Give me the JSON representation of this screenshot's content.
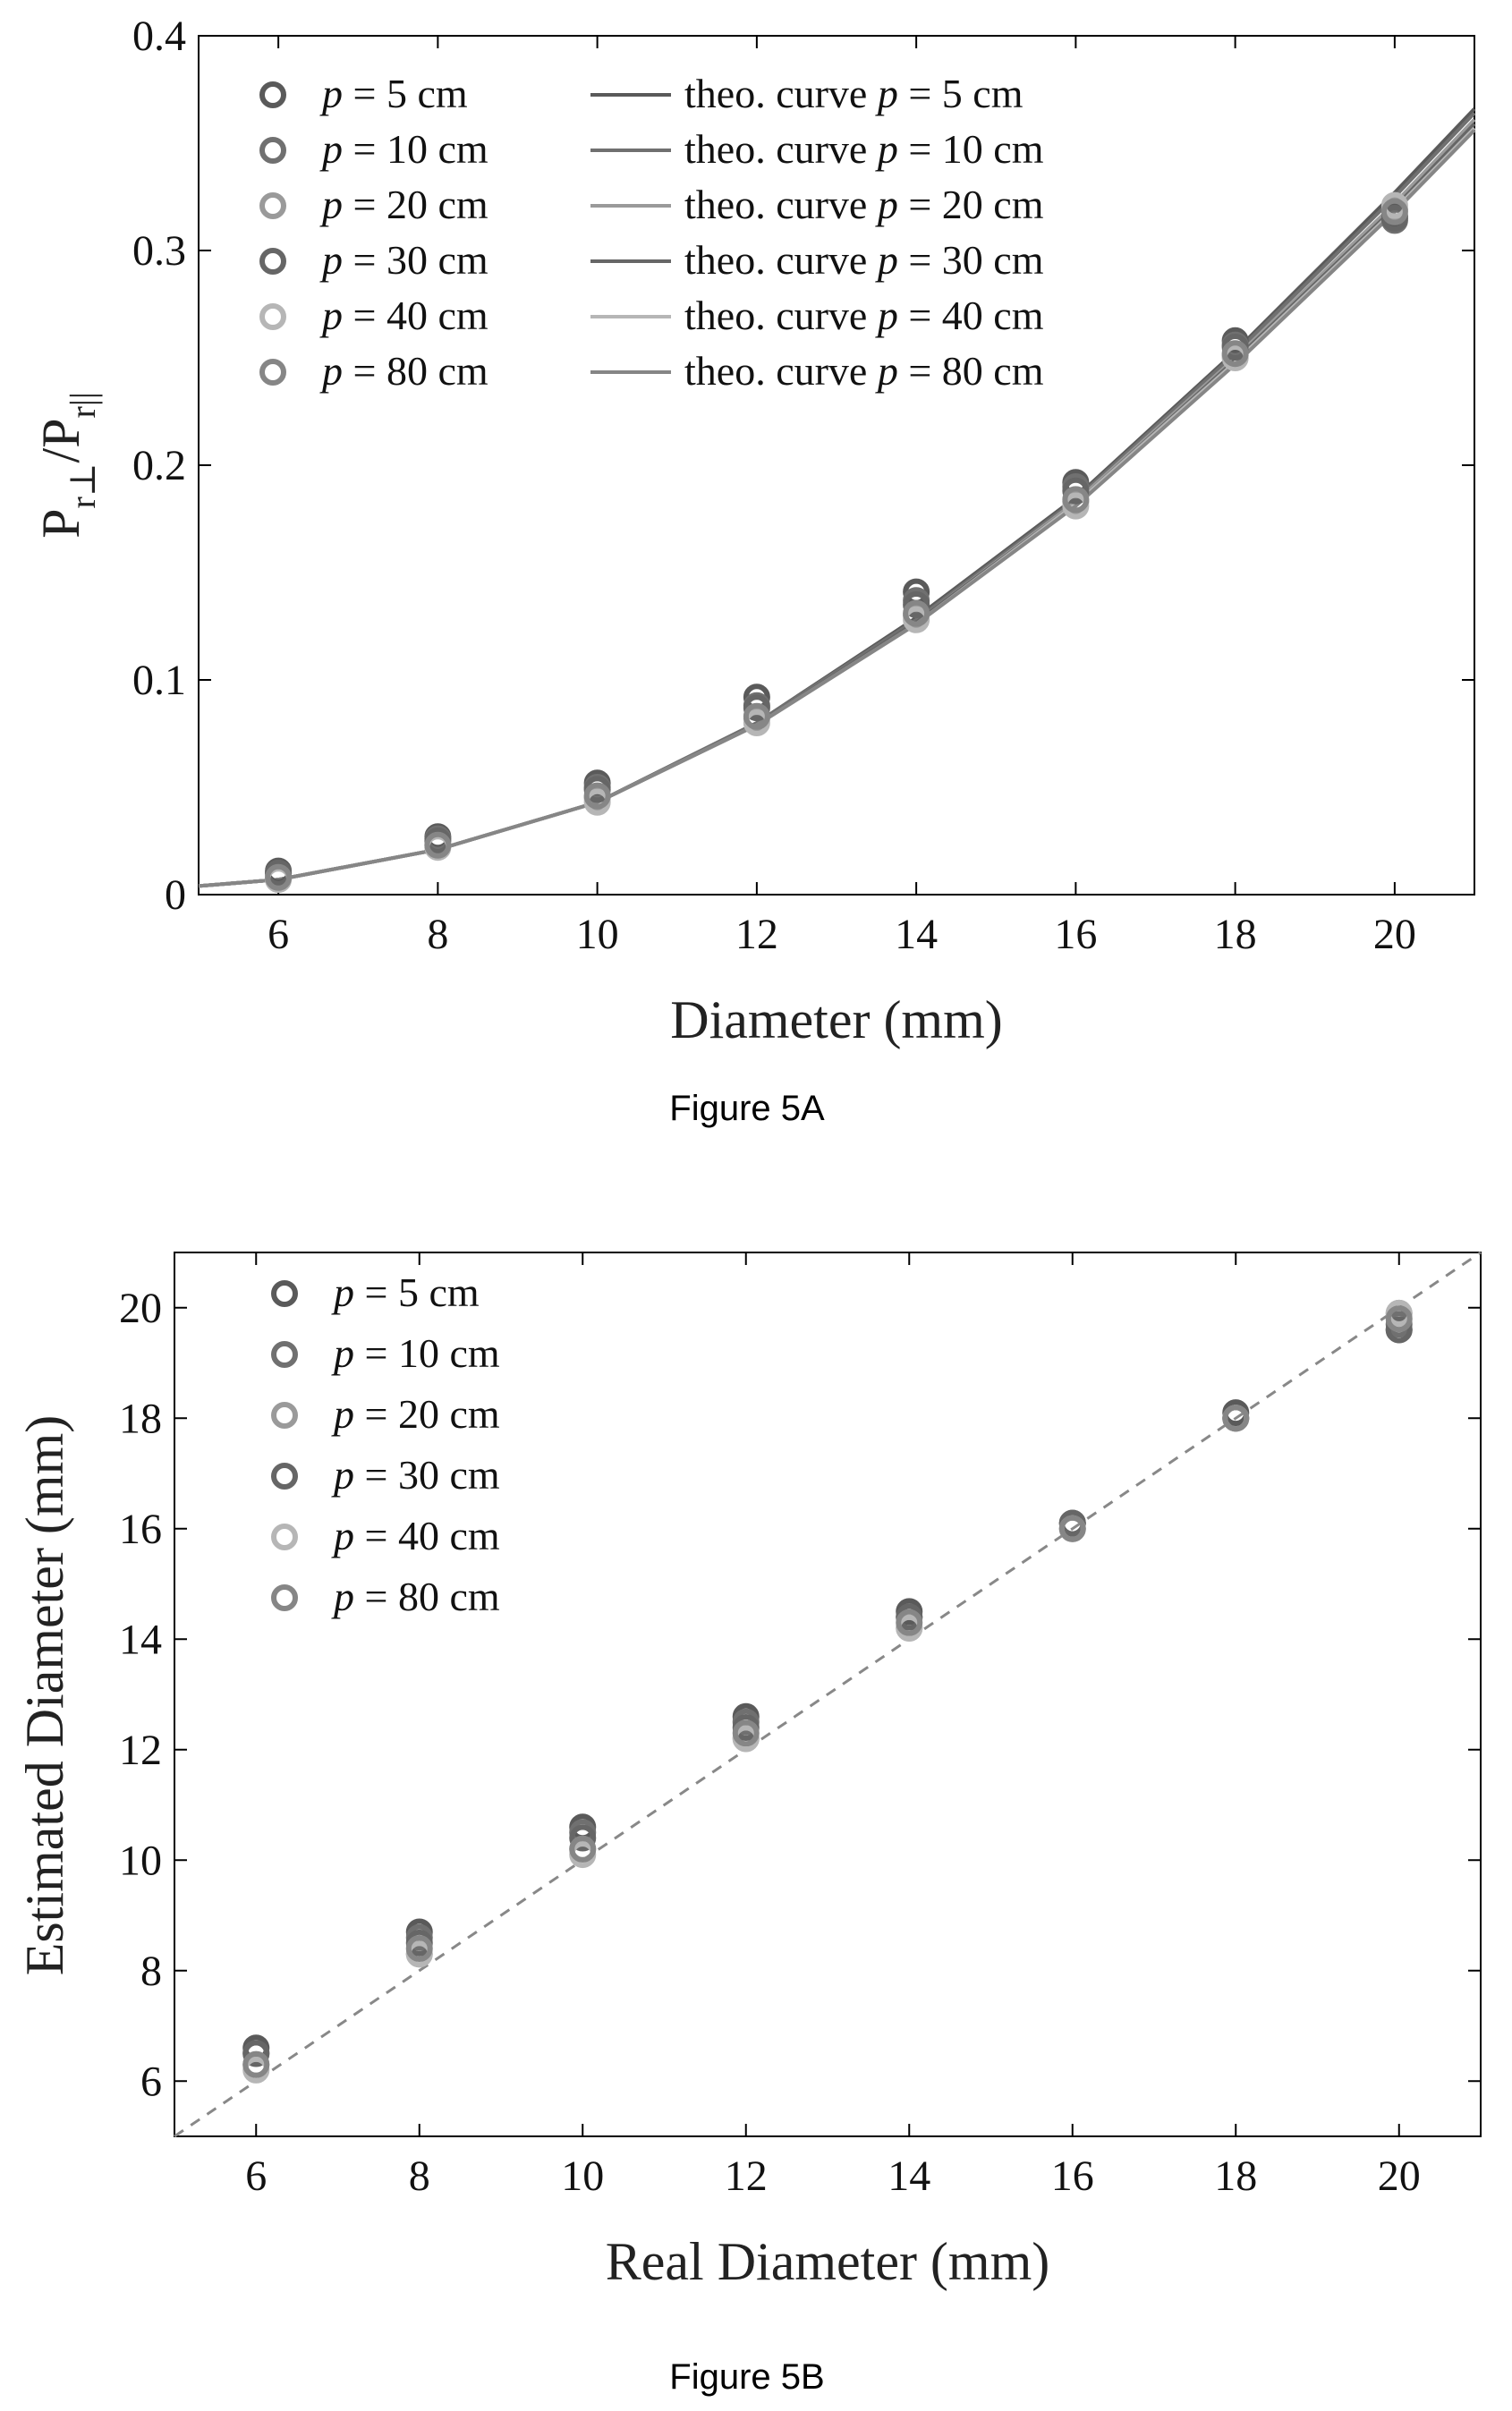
{
  "figures": {
    "a_caption": "Figure 5A",
    "b_caption": "Figure 5B"
  },
  "colors": {
    "series": [
      "#5a5a5a",
      "#707070",
      "#9a9a9a",
      "#666666",
      "#b6b6b6",
      "#868686"
    ],
    "axis": "#000000",
    "reference_line": "#888888"
  },
  "chart_data": [
    {
      "id": "fig5a",
      "type": "scatter",
      "title": "",
      "xlabel": "Diameter (mm)",
      "ylabel": "P_r⊥/P_r||",
      "xlim": [
        5,
        21
      ],
      "ylim": [
        0,
        0.4
      ],
      "xticks": [
        6,
        8,
        10,
        12,
        14,
        16,
        18,
        20
      ],
      "yticks": [
        0,
        0.1,
        0.2,
        0.3,
        0.4
      ],
      "ytick_labels": [
        "0",
        "0.1",
        "0.2",
        "0.3",
        "0.4"
      ],
      "grid": false,
      "legend": "top-left",
      "x": [
        6,
        8,
        10,
        12,
        14,
        16,
        18,
        20
      ],
      "series": [
        {
          "name_prefix": "p",
          "name_suffix": " = 5 cm",
          "values": [
            0.011,
            0.027,
            0.052,
            0.092,
            0.141,
            0.192,
            0.258,
            0.316
          ]
        },
        {
          "name_prefix": "p",
          "name_suffix": " = 10 cm",
          "values": [
            0.01,
            0.026,
            0.05,
            0.088,
            0.137,
            0.19,
            0.256,
            0.314
          ]
        },
        {
          "name_prefix": "p",
          "name_suffix": " = 20 cm",
          "values": [
            0.008,
            0.023,
            0.045,
            0.082,
            0.13,
            0.183,
            0.251,
            0.319
          ]
        },
        {
          "name_prefix": "p",
          "name_suffix": " = 30 cm",
          "values": [
            0.01,
            0.025,
            0.049,
            0.087,
            0.135,
            0.188,
            0.255,
            0.315
          ]
        },
        {
          "name_prefix": "p",
          "name_suffix": " = 40 cm",
          "values": [
            0.007,
            0.022,
            0.043,
            0.08,
            0.128,
            0.181,
            0.25,
            0.321
          ]
        },
        {
          "name_prefix": "p",
          "name_suffix": " = 80 cm",
          "values": [
            0.008,
            0.023,
            0.046,
            0.083,
            0.131,
            0.184,
            0.252,
            0.318
          ]
        }
      ],
      "curves": [
        {
          "name_prefix": "theo. curve  ",
          "name_var": "p",
          "name_suffix": " = 5 cm",
          "x": [
            5,
            6,
            8,
            10,
            12,
            14,
            16,
            18,
            20,
            21
          ],
          "values": [
            0.004,
            0.007,
            0.021,
            0.043,
            0.08,
            0.129,
            0.185,
            0.253,
            0.327,
            0.366
          ]
        },
        {
          "name_prefix": "theo. curve  ",
          "name_var": "p",
          "name_suffix": " = 10 cm",
          "x": [
            5,
            6,
            8,
            10,
            12,
            14,
            16,
            18,
            20,
            21
          ],
          "values": [
            0.004,
            0.007,
            0.021,
            0.043,
            0.08,
            0.128,
            0.184,
            0.252,
            0.325,
            0.364
          ]
        },
        {
          "name_prefix": "theo. curve  ",
          "name_var": "p",
          "name_suffix": " = 20 cm",
          "x": [
            5,
            6,
            8,
            10,
            12,
            14,
            16,
            18,
            20,
            21
          ],
          "values": [
            0.004,
            0.007,
            0.021,
            0.043,
            0.079,
            0.127,
            0.183,
            0.25,
            0.322,
            0.361
          ]
        },
        {
          "name_prefix": "theo. curve  ",
          "name_var": "p",
          "name_suffix": " = 30 cm",
          "x": [
            5,
            6,
            8,
            10,
            12,
            14,
            16,
            18,
            20,
            21
          ],
          "values": [
            0.004,
            0.007,
            0.021,
            0.043,
            0.079,
            0.127,
            0.182,
            0.249,
            0.32,
            0.359
          ]
        },
        {
          "name_prefix": "theo. curve  ",
          "name_var": "p",
          "name_suffix": " = 40 cm",
          "x": [
            5,
            6,
            8,
            10,
            12,
            14,
            16,
            18,
            20,
            21
          ],
          "values": [
            0.004,
            0.007,
            0.021,
            0.043,
            0.079,
            0.126,
            0.182,
            0.248,
            0.319,
            0.357
          ]
        },
        {
          "name_prefix": "theo. curve  ",
          "name_var": "p",
          "name_suffix": " = 80 cm",
          "x": [
            5,
            6,
            8,
            10,
            12,
            14,
            16,
            18,
            20,
            21
          ],
          "values": [
            0.004,
            0.007,
            0.021,
            0.043,
            0.079,
            0.126,
            0.181,
            0.247,
            0.318,
            0.356
          ]
        }
      ]
    },
    {
      "id": "fig5b",
      "type": "scatter",
      "title": "",
      "xlabel": "Real Diameter (mm)",
      "ylabel": "Estimated Diameter (mm)",
      "xlim": [
        5,
        21
      ],
      "ylim": [
        5,
        21
      ],
      "xticks": [
        6,
        8,
        10,
        12,
        14,
        16,
        18,
        20
      ],
      "yticks": [
        6,
        8,
        10,
        12,
        14,
        16,
        18,
        20
      ],
      "grid": false,
      "legend": "top-left",
      "x": [
        6,
        8,
        10,
        12,
        14,
        16,
        18,
        20
      ],
      "series": [
        {
          "name_prefix": "p",
          "name_suffix": " = 5 cm",
          "values": [
            6.6,
            8.7,
            10.6,
            12.6,
            14.5,
            16.1,
            18.1,
            19.6
          ]
        },
        {
          "name_prefix": "p",
          "name_suffix": " = 10 cm",
          "values": [
            6.5,
            8.6,
            10.5,
            12.5,
            14.4,
            16.1,
            18.0,
            19.7
          ]
        },
        {
          "name_prefix": "p",
          "name_suffix": " = 20 cm",
          "values": [
            6.3,
            8.3,
            10.2,
            12.2,
            14.2,
            16.0,
            18.0,
            19.9
          ]
        },
        {
          "name_prefix": "p",
          "name_suffix": " = 30 cm",
          "values": [
            6.5,
            8.5,
            10.4,
            12.4,
            14.4,
            16.1,
            18.0,
            19.6
          ]
        },
        {
          "name_prefix": "p",
          "name_suffix": " = 40 cm",
          "values": [
            6.2,
            8.3,
            10.1,
            12.2,
            14.2,
            16.0,
            18.0,
            19.9
          ]
        },
        {
          "name_prefix": "p",
          "name_suffix": " = 80 cm",
          "values": [
            6.3,
            8.4,
            10.2,
            12.3,
            14.3,
            16.0,
            18.0,
            19.8
          ]
        }
      ],
      "reference_line": {
        "x": [
          5,
          21
        ],
        "values": [
          5,
          21
        ],
        "style": "dashed"
      }
    }
  ]
}
